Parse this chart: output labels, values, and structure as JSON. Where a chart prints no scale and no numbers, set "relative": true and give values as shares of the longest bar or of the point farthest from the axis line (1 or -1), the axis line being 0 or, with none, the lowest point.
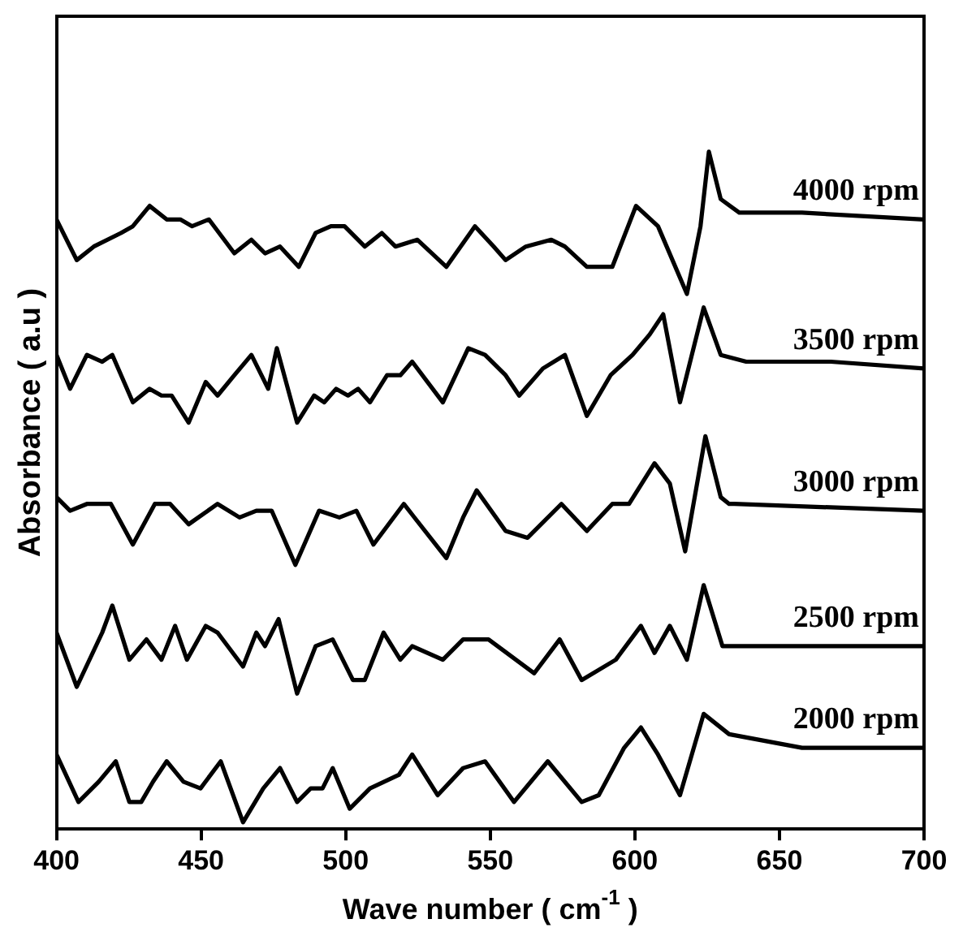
{
  "chart_data": {
    "type": "line",
    "relative": true,
    "xlabel": "Wave number ( cm$^{-1}$ )",
    "ylabel": "Absorbance ( a.u )",
    "xlim": [
      400,
      700
    ],
    "xticks": [
      400,
      450,
      500,
      550,
      600,
      650,
      700
    ],
    "tick_labels": "x",
    "grid": false,
    "legend": false,
    "marker": "none",
    "line_style": "solid",
    "series": [
      {
        "name": "4000 rpm",
        "color": "#000000",
        "x": [
          400,
          407,
          412.9,
          422.3,
          426.4,
          432.2,
          438.1,
          442.8,
          446.9,
          452.7,
          461.5,
          467.4,
          472.1,
          477.3,
          483.8,
          489.6,
          494.9,
          499.6,
          506.6,
          512.5,
          517.2,
          524.8,
          534.8,
          544.7,
          551.2,
          555.3,
          562.3,
          571.1,
          575.8,
          583.4,
          592.2,
          600.4,
          608,
          618,
          622.7,
          625.6,
          629.7,
          636.1,
          657.8,
          700
        ],
        "values": [
          0.9,
          0.84,
          0.86,
          0.88,
          0.89,
          0.92,
          0.9,
          0.9,
          0.89,
          0.9,
          0.85,
          0.87,
          0.85,
          0.86,
          0.83,
          0.88,
          0.89,
          0.89,
          0.86,
          0.88,
          0.86,
          0.87,
          0.83,
          0.89,
          0.86,
          0.84,
          0.86,
          0.87,
          0.86,
          0.83,
          0.83,
          0.92,
          0.89,
          0.79,
          0.89,
          1.0,
          0.93,
          0.91,
          0.91,
          0.9
        ]
      },
      {
        "name": "3500 rpm",
        "color": "#000000",
        "x": [
          400,
          404.7,
          410.5,
          415.8,
          419.3,
          426.4,
          432.2,
          436.3,
          439.8,
          445.7,
          451.6,
          455.7,
          461.5,
          467.4,
          473.2,
          476.2,
          483.2,
          489.1,
          492.6,
          496.7,
          500.8,
          504.3,
          508.4,
          514.3,
          518.9,
          523,
          533.6,
          542.4,
          548.2,
          555.3,
          560,
          568.2,
          575.8,
          583.4,
          591.6,
          599.2,
          605.1,
          609.8,
          615.6,
          623.8,
          629.7,
          638.5,
          667.8,
          700
        ],
        "values": [
          0.7,
          0.65,
          0.7,
          0.69,
          0.7,
          0.63,
          0.65,
          0.64,
          0.64,
          0.6,
          0.66,
          0.64,
          0.67,
          0.7,
          0.65,
          0.71,
          0.6,
          0.64,
          0.63,
          0.65,
          0.64,
          0.65,
          0.63,
          0.67,
          0.67,
          0.69,
          0.63,
          0.71,
          0.7,
          0.67,
          0.64,
          0.68,
          0.7,
          0.61,
          0.67,
          0.7,
          0.73,
          0.76,
          0.63,
          0.77,
          0.7,
          0.69,
          0.69,
          0.68
        ]
      },
      {
        "name": "3000 rpm",
        "color": "#000000",
        "x": [
          400,
          404.7,
          410.5,
          414.6,
          418.8,
          426.4,
          434,
          439.3,
          445.7,
          455.7,
          463.3,
          469.1,
          474.4,
          482.6,
          490.8,
          497.8,
          503.7,
          509.6,
          520.1,
          534.8,
          540.6,
          545.3,
          555.3,
          562.9,
          574.6,
          583.4,
          592.2,
          598,
          606.8,
          612.1,
          617.4,
          624.4,
          629.7,
          632.6,
          634.4,
          700
        ],
        "values": [
          0.49,
          0.47,
          0.48,
          0.48,
          0.48,
          0.42,
          0.48,
          0.48,
          0.45,
          0.48,
          0.46,
          0.47,
          0.47,
          0.39,
          0.47,
          0.46,
          0.47,
          0.42,
          0.48,
          0.4,
          0.46,
          0.5,
          0.44,
          0.43,
          0.48,
          0.44,
          0.48,
          0.48,
          0.54,
          0.51,
          0.41,
          0.58,
          0.49,
          0.48,
          0.48,
          0.47
        ]
      },
      {
        "name": "2500 rpm",
        "color": "#000000",
        "x": [
          400,
          407,
          415.8,
          419.3,
          425.2,
          431.1,
          436.3,
          441,
          445.1,
          451.6,
          455.7,
          464.5,
          469.1,
          472.1,
          476.8,
          483.2,
          489.6,
          495.5,
          502.5,
          506.6,
          513.1,
          518.9,
          523,
          533.6,
          540.6,
          549.4,
          565.2,
          574,
          581.6,
          593.4,
          602.1,
          606.8,
          612.1,
          618,
          623.8,
          630.3,
          642,
          700
        ],
        "values": [
          0.29,
          0.21,
          0.29,
          0.33,
          0.25,
          0.28,
          0.25,
          0.3,
          0.25,
          0.3,
          0.29,
          0.24,
          0.29,
          0.27,
          0.31,
          0.2,
          0.27,
          0.28,
          0.22,
          0.22,
          0.29,
          0.25,
          0.27,
          0.25,
          0.28,
          0.28,
          0.23,
          0.28,
          0.22,
          0.25,
          0.3,
          0.26,
          0.3,
          0.25,
          0.36,
          0.27,
          0.27,
          0.27
        ]
      },
      {
        "name": "2000 rpm",
        "color": "#000000",
        "x": [
          400,
          407.6,
          414.6,
          420.5,
          425.2,
          429.3,
          433.4,
          438.1,
          443.9,
          449.8,
          456.8,
          464.5,
          471.5,
          477.3,
          483.2,
          487.9,
          492,
          495.5,
          501.4,
          508.4,
          518.4,
          523,
          531.8,
          540.6,
          548.2,
          558.2,
          569.9,
          581.6,
          587.5,
          596.3,
          602.1,
          608,
          615.6,
          623.8,
          632.6,
          657.8,
          700
        ],
        "values": [
          0.11,
          0.04,
          0.07,
          0.1,
          0.04,
          0.04,
          0.07,
          0.1,
          0.07,
          0.06,
          0.1,
          0.01,
          0.06,
          0.09,
          0.04,
          0.06,
          0.06,
          0.09,
          0.03,
          0.06,
          0.08,
          0.11,
          0.05,
          0.09,
          0.1,
          0.04,
          0.1,
          0.04,
          0.05,
          0.12,
          0.15,
          0.11,
          0.05,
          0.17,
          0.14,
          0.12,
          0.12
        ]
      }
    ]
  }
}
